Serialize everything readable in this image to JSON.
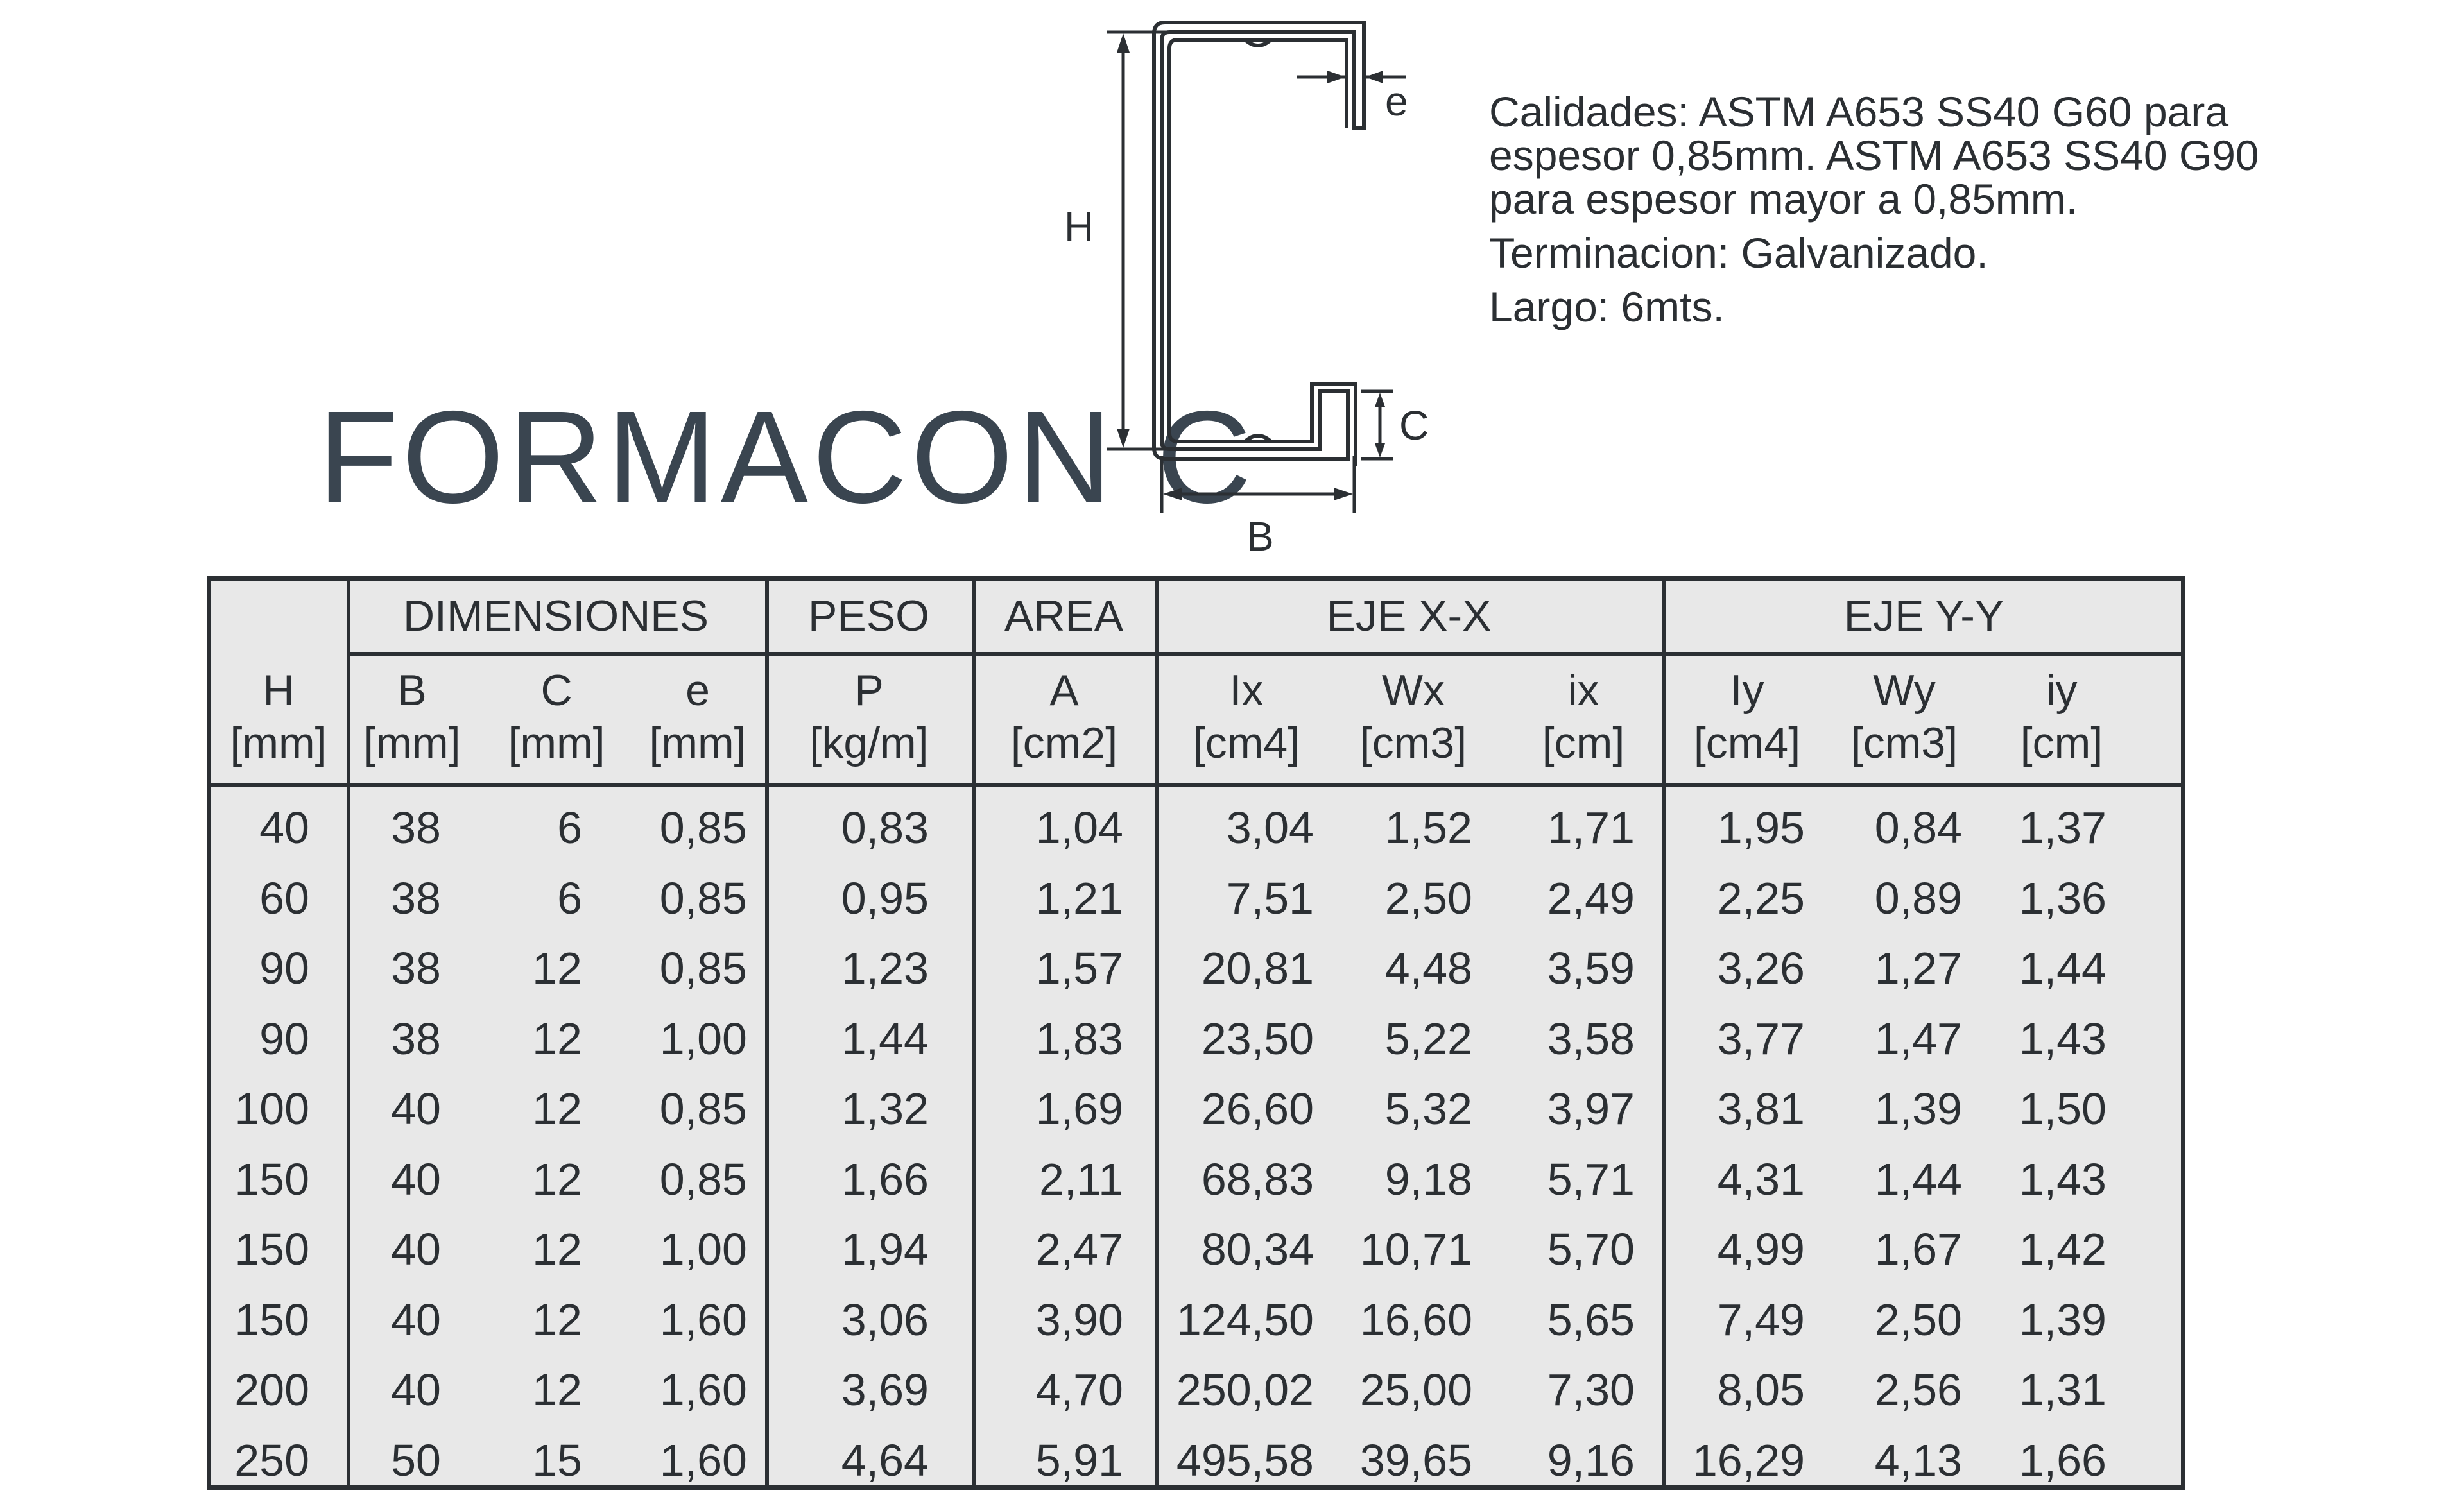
{
  "title": "FORMACON C",
  "specs": [
    "Calidades: ASTM A653 SS40 G60 para espesor 0,85mm. ASTM A653 SS40 G90 para espesor mayor a 0,85mm.",
    "Terminacion: Galvanizado.",
    "Largo: 6mts."
  ],
  "diagram": {
    "h": "H",
    "b": "B",
    "c": "C",
    "e": "e"
  },
  "table": {
    "groups": {
      "dimensiones": "DIMENSIONES",
      "peso": "PESO",
      "area": "AREA",
      "eje_x": "EJE X-X",
      "eje_y": "EJE Y-Y"
    },
    "columns": [
      {
        "sym": "H",
        "unit": "[mm]"
      },
      {
        "sym": "B",
        "unit": "[mm]"
      },
      {
        "sym": "C",
        "unit": "[mm]"
      },
      {
        "sym": "e",
        "unit": "[mm]"
      },
      {
        "sym": "P",
        "unit": "[kg/m]"
      },
      {
        "sym": "A",
        "unit": "[cm2]"
      },
      {
        "sym": "Ix",
        "unit": "[cm4]"
      },
      {
        "sym": "Wx",
        "unit": "[cm3]"
      },
      {
        "sym": "ix",
        "unit": "[cm]"
      },
      {
        "sym": "Iy",
        "unit": "[cm4]"
      },
      {
        "sym": "Wy",
        "unit": "[cm3]"
      },
      {
        "sym": "iy",
        "unit": "[cm]"
      }
    ],
    "rows": [
      [
        "40",
        "38",
        "6",
        "0,85",
        "0,83",
        "1,04",
        "3,04",
        "1,52",
        "1,71",
        "1,95",
        "0,84",
        "1,37"
      ],
      [
        "60",
        "38",
        "6",
        "0,85",
        "0,95",
        "1,21",
        "7,51",
        "2,50",
        "2,49",
        "2,25",
        "0,89",
        "1,36"
      ],
      [
        "90",
        "38",
        "12",
        "0,85",
        "1,23",
        "1,57",
        "20,81",
        "4,48",
        "3,59",
        "3,26",
        "1,27",
        "1,44"
      ],
      [
        "90",
        "38",
        "12",
        "1,00",
        "1,44",
        "1,83",
        "23,50",
        "5,22",
        "3,58",
        "3,77",
        "1,47",
        "1,43"
      ],
      [
        "100",
        "40",
        "12",
        "0,85",
        "1,32",
        "1,69",
        "26,60",
        "5,32",
        "3,97",
        "3,81",
        "1,39",
        "1,50"
      ],
      [
        "150",
        "40",
        "12",
        "0,85",
        "1,66",
        "2,11",
        "68,83",
        "9,18",
        "5,71",
        "4,31",
        "1,44",
        "1,43"
      ],
      [
        "150",
        "40",
        "12",
        "1,00",
        "1,94",
        "2,47",
        "80,34",
        "10,71",
        "5,70",
        "4,99",
        "1,67",
        "1,42"
      ],
      [
        "150",
        "40",
        "12",
        "1,60",
        "3,06",
        "3,90",
        "124,50",
        "16,60",
        "5,65",
        "7,49",
        "2,50",
        "1,39"
      ],
      [
        "200",
        "40",
        "12",
        "1,60",
        "3,69",
        "4,70",
        "250,02",
        "25,00",
        "7,30",
        "8,05",
        "2,56",
        "1,31"
      ],
      [
        "250",
        "50",
        "15",
        "1,60",
        "4,64",
        "5,91",
        "495,58",
        "39,65",
        "9,16",
        "16,29",
        "4,13",
        "1,66"
      ]
    ]
  }
}
